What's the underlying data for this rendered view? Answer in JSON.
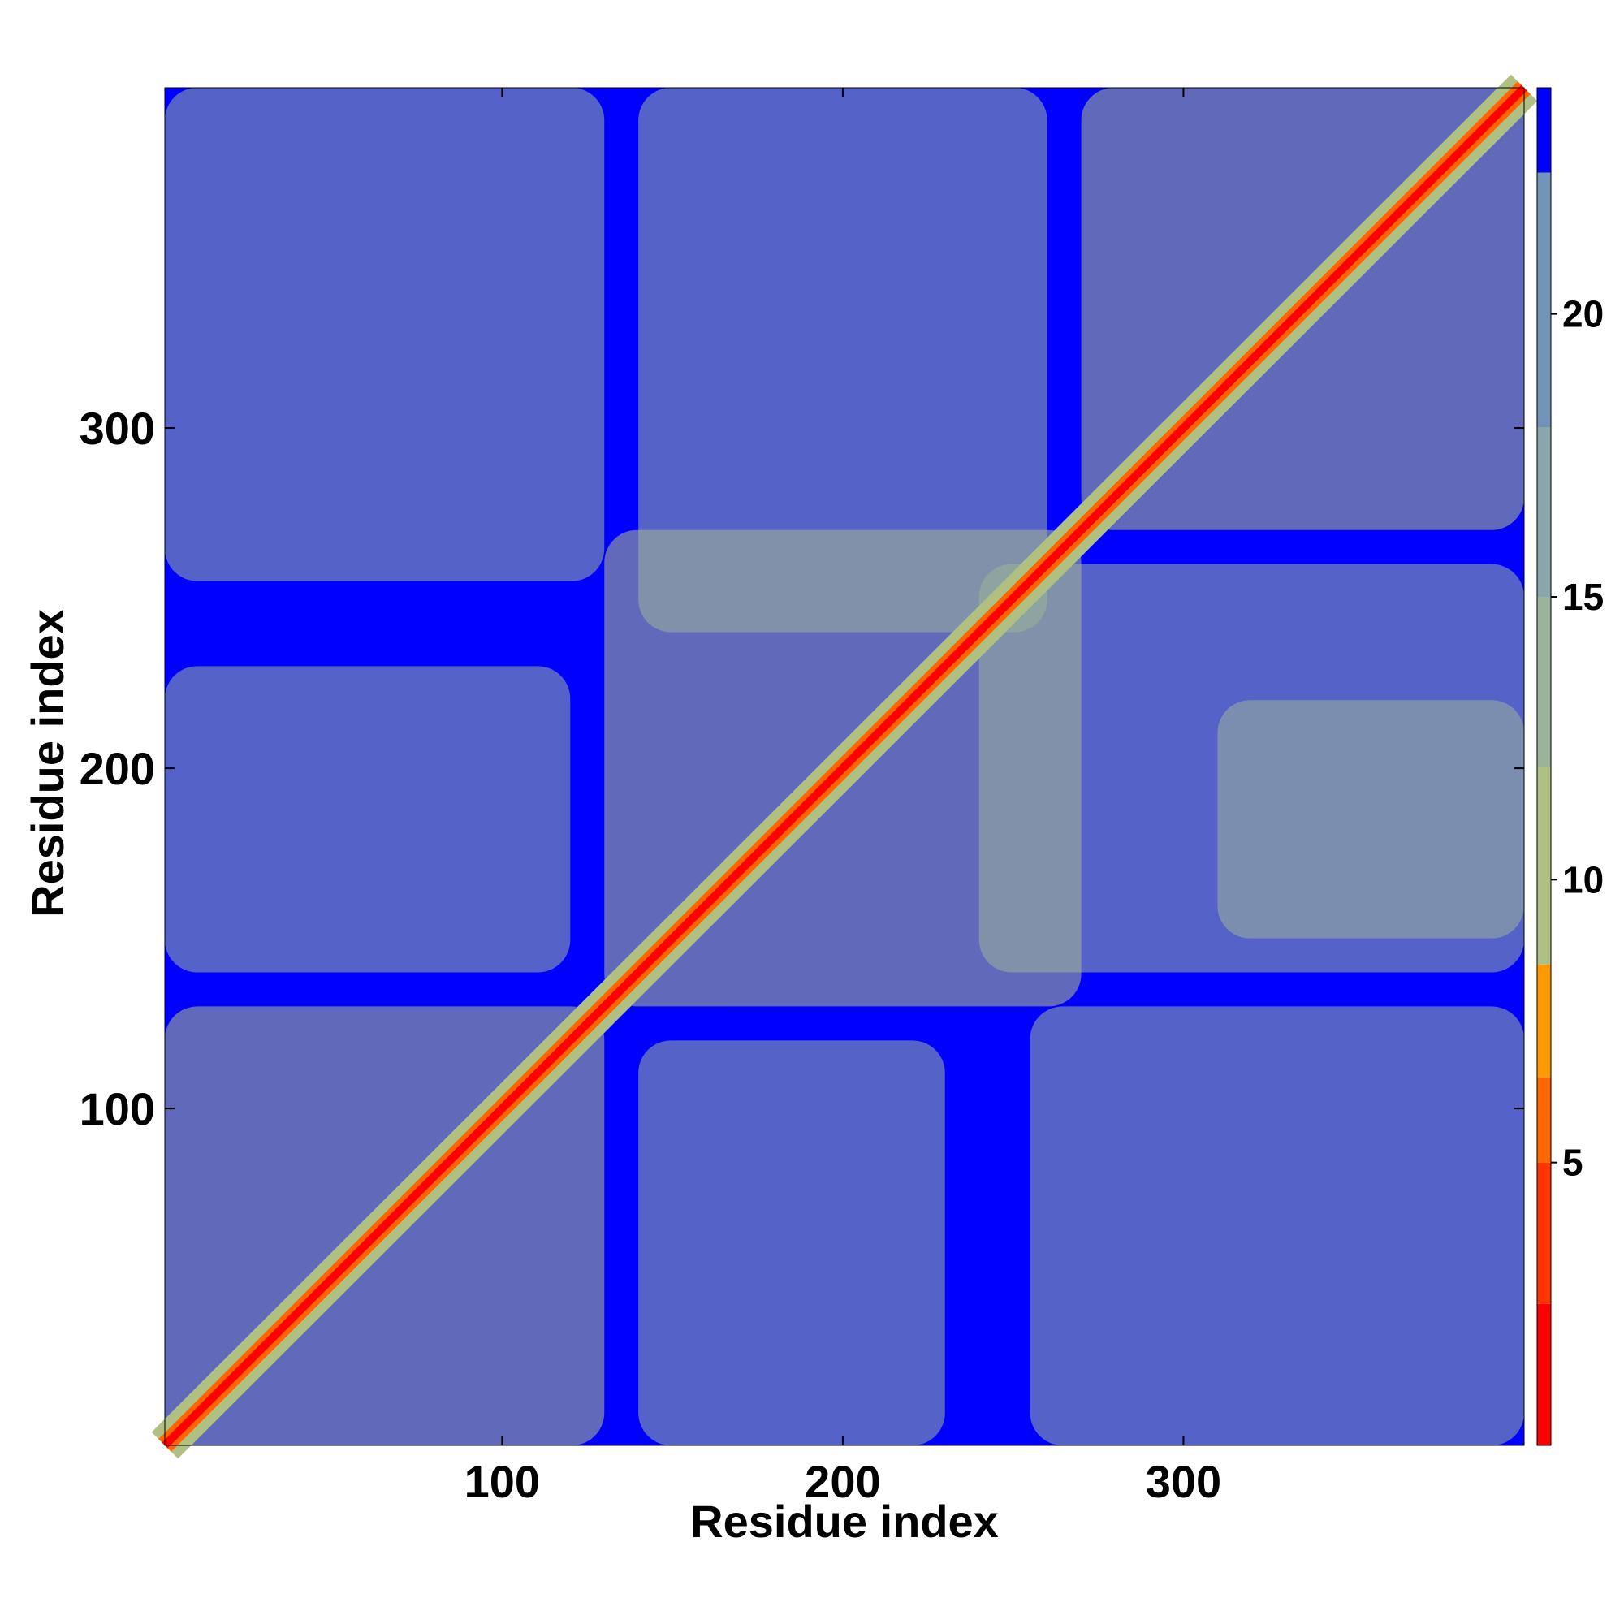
{
  "chart_data": {
    "type": "heatmap",
    "title": "",
    "xlabel": "Residue index",
    "ylabel": "Residue index",
    "xlim": [
      1,
      400
    ],
    "ylim": [
      1,
      400
    ],
    "x_ticks": [
      100,
      200,
      300
    ],
    "y_ticks": [
      100,
      200,
      300
    ],
    "colorbar": {
      "range": [
        0,
        24
      ],
      "ticks": [
        5,
        10,
        15,
        20
      ],
      "levels": [
        {
          "from": 0,
          "to": 2.5,
          "color": "#ff0000"
        },
        {
          "from": 2.5,
          "to": 5,
          "color": "#ff3300"
        },
        {
          "from": 5,
          "to": 6.5,
          "color": "#ff6600"
        },
        {
          "from": 6.5,
          "to": 8.5,
          "color": "#ff9900"
        },
        {
          "from": 8.5,
          "to": 12,
          "color": "#aec082"
        },
        {
          "from": 12,
          "to": 15,
          "color": "#9bb39a"
        },
        {
          "from": 15,
          "to": 18,
          "color": "#8aa6aa"
        },
        {
          "from": 18,
          "to": 22.5,
          "color": "#6f94b8"
        },
        {
          "from": 22.5,
          "to": 24,
          "color": "#0000ff"
        }
      ]
    },
    "background_value": 24,
    "grid": false,
    "legend": "colorbar-right",
    "contact_regions": [
      {
        "x": [
          1,
          130
        ],
        "y": [
          1,
          130
        ],
        "value": 9
      },
      {
        "x": [
          130,
          270
        ],
        "y": [
          130,
          270
        ],
        "value": 10
      },
      {
        "x": [
          270,
          400
        ],
        "y": [
          270,
          400
        ],
        "value": 9
      },
      {
        "x": [
          1,
          130
        ],
        "y": [
          255,
          400
        ],
        "value": 13
      },
      {
        "x": [
          255,
          400
        ],
        "y": [
          1,
          130
        ],
        "value": 13
      },
      {
        "x": [
          140,
          260
        ],
        "y": [
          240,
          400
        ],
        "value": 13
      },
      {
        "x": [
          240,
          400
        ],
        "y": [
          140,
          260
        ],
        "value": 13
      },
      {
        "x": [
          1,
          120
        ],
        "y": [
          140,
          230
        ],
        "value": 15
      },
      {
        "x": [
          140,
          230
        ],
        "y": [
          1,
          120
        ],
        "value": 15
      },
      {
        "x": [
          310,
          400
        ],
        "y": [
          150,
          220
        ],
        "value": 14
      }
    ]
  }
}
